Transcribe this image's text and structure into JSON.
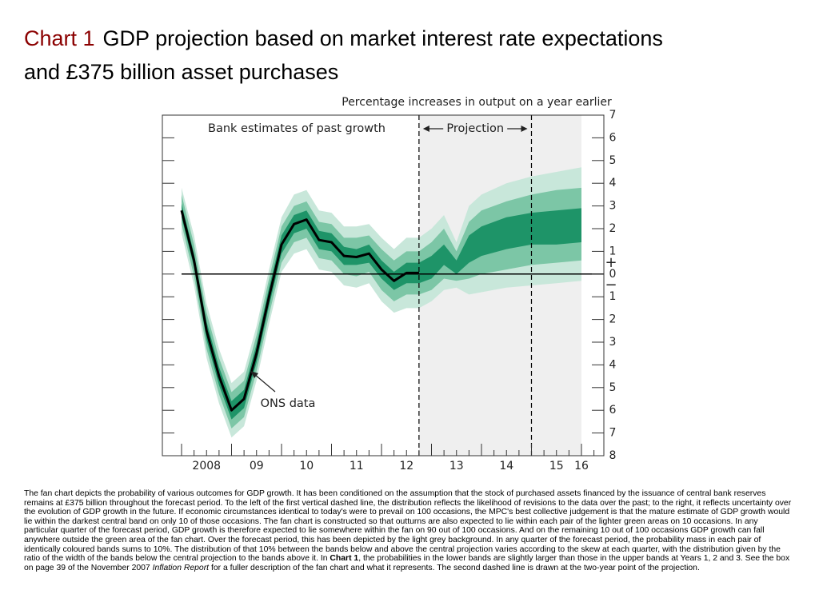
{
  "chart_data": {
    "type": "fan",
    "title_prefix": "Chart 1",
    "title": "GDP projection based on market interest rate expectations and £375 billion asset purchases",
    "y_axis_label": "Percentage increases in output on a year earlier",
    "history_label": "Bank estimates of past growth",
    "projection": {
      "label": "Projection",
      "start": 2012.75,
      "end": 2016.0
    },
    "dashed_lines": [
      2012.75,
      2015.0
    ],
    "sign_labels": [
      "+",
      "−"
    ],
    "xlim": [
      2007.616,
      2016.448
    ],
    "xticks": [
      {
        "value": 2008.5,
        "label": "2008"
      },
      {
        "value": 2009.5,
        "label": "09"
      },
      {
        "value": 2010.5,
        "label": "10"
      },
      {
        "value": 2011.5,
        "label": "11"
      },
      {
        "value": 2012.5,
        "label": "12"
      },
      {
        "value": 2013.5,
        "label": "13"
      },
      {
        "value": 2014.5,
        "label": "14"
      },
      {
        "value": 2015.5,
        "label": "15"
      },
      {
        "value": 2016.0,
        "label": "16"
      }
    ],
    "ylim": [
      -8,
      7
    ],
    "yticks": [
      7,
      6,
      5,
      4,
      3,
      2,
      1,
      0,
      {
        "value": -1,
        "label": "1"
      },
      {
        "value": -2,
        "label": "2"
      },
      {
        "value": -3,
        "label": "3"
      },
      {
        "value": -4,
        "label": "4"
      },
      {
        "value": -5,
        "label": "5"
      },
      {
        "value": -6,
        "label": "6"
      },
      {
        "value": -7,
        "label": "7"
      },
      {
        "value": -8,
        "label": "8"
      }
    ],
    "x": [
      2008,
      2008.25,
      2008.5,
      2008.75,
      2009,
      2009.25,
      2009.5,
      2009.75,
      2010,
      2010.25,
      2010.5,
      2010.75,
      2011,
      2011.25,
      2011.5,
      2011.75,
      2012,
      2012.25,
      2012.5,
      2012.75,
      2013,
      2013.25,
      2013.5,
      2013.75,
      2014,
      2014.5,
      2015,
      2015.5,
      2016
    ],
    "bands": [
      {
        "color": "#c8e7da",
        "lower": [
          1.8,
          -0.5,
          -3.7,
          -5.7,
          -7.2,
          -6.7,
          -4.7,
          -2.2,
          0.1,
          0.9,
          1.1,
          0.2,
          0.1,
          -0.5,
          -0.6,
          -0.4,
          -1.2,
          -1.7,
          -1.5,
          -1.5,
          -1.2,
          -0.7,
          -0.6,
          -0.9,
          -0.8,
          -0.6,
          -0.5,
          -0.4,
          -0.3
        ],
        "upper": [
          3.8,
          1.7,
          -1.3,
          -3.3,
          -4.8,
          -4.3,
          -2.3,
          0.2,
          2.5,
          3.5,
          3.7,
          2.8,
          2.7,
          2.1,
          2.1,
          2.2,
          1.6,
          1.1,
          1.6,
          1.6,
          2.0,
          2.6,
          1.4,
          3.0,
          3.5,
          4.0,
          4.3,
          4.5,
          4.7
        ]
      },
      {
        "color": "#7cc6a6",
        "lower": [
          2.2,
          -0.1,
          -3.3,
          -5.3,
          -6.8,
          -6.3,
          -4.3,
          -1.8,
          0.5,
          1.4,
          1.6,
          0.7,
          0.6,
          0.0,
          -0.1,
          0.1,
          -0.7,
          -1.2,
          -0.9,
          -0.9,
          -0.7,
          -0.2,
          -0.3,
          -0.2,
          0.0,
          0.2,
          0.4,
          0.5,
          0.6
        ],
        "upper": [
          3.5,
          1.3,
          -1.7,
          -3.7,
          -5.2,
          -4.7,
          -2.7,
          -0.2,
          2.1,
          3.0,
          3.2,
          2.3,
          2.2,
          1.6,
          1.6,
          1.7,
          1.1,
          0.6,
          1.0,
          1.0,
          1.4,
          2.0,
          1.0,
          2.3,
          2.8,
          3.2,
          3.5,
          3.7,
          3.8
        ]
      },
      {
        "color": "#1e9468",
        "lower": [
          2.5,
          0.3,
          -2.9,
          -4.9,
          -6.4,
          -5.9,
          -3.9,
          -1.4,
          0.9,
          1.8,
          2.0,
          1.1,
          1.0,
          0.4,
          0.4,
          0.5,
          -0.2,
          -0.7,
          -0.4,
          -0.4,
          -0.2,
          0.4,
          0.0,
          0.5,
          0.8,
          1.1,
          1.3,
          1.3,
          1.4
        ],
        "upper": [
          3.1,
          0.9,
          -2.1,
          -4.1,
          -5.6,
          -5.1,
          -3.1,
          -0.6,
          1.7,
          2.6,
          2.8,
          1.9,
          1.8,
          1.2,
          1.1,
          1.3,
          0.6,
          0.1,
          0.5,
          0.5,
          0.8,
          1.3,
          0.6,
          1.7,
          2.1,
          2.5,
          2.7,
          2.8,
          2.9
        ]
      }
    ],
    "series": [
      {
        "name": "ONS data",
        "color": "#000000",
        "values": [
          2.8,
          0.6,
          -2.5,
          -4.5,
          -6.0,
          -5.5,
          -3.5,
          -1.0,
          1.3,
          2.2,
          2.4,
          1.5,
          1.4,
          0.8,
          0.75,
          0.9,
          0.2,
          -0.3,
          0.05,
          0.05,
          null,
          null,
          null,
          null,
          null,
          null,
          null,
          null,
          null
        ]
      }
    ]
  },
  "note": {
    "before": "The fan chart depicts the probability of various outcomes for GDP growth.  It has been conditioned on the assumption that the stock of purchased assets financed by the issuance of central bank reserves remains at £375 billion throughout the forecast period.  To the left of the first vertical dashed line, the distribution reflects the likelihood of revisions to the data over the past;  to the right, it reflects uncertainty over the evolution of GDP growth in the future.  If economic circumstances identical to today's were to prevail on 100 occasions, the MPC's best collective judgement is that the mature estimate of GDP growth would lie within the darkest central band on only 10 of those occasions.  The fan chart is constructed so that outturns are also expected to lie within each pair of the lighter green areas on 10 occasions.  In any particular quarter of the forecast period, GDP growth is therefore expected to lie somewhere within the fan on 90 out of 100 occasions.  And on the remaining 10 out of 100 occasions GDP growth can fall anywhere outside the green area of the fan chart.  Over the forecast period, this has been depicted by the light grey background.  In any quarter of the forecast period, the probability mass in each pair of identically coloured bands sums to 10%.  The distribution of that 10% between the bands below and above the central projection varies according to the skew at each quarter, with the distribution given by the ratio of the width of the bands below the central projection to the bands above it.  In ",
    "bold": "Chart 1",
    "middle": ", the probabilities in the lower bands are slightly larger than those in the upper bands at Years 1, 2 and 3.  See the box on page 39 of the November 2007 ",
    "italic": "Inflation Report",
    "after": " for a fuller description of the fan chart and what it represents.  The second dashed line is drawn at the two-year point of the projection."
  }
}
